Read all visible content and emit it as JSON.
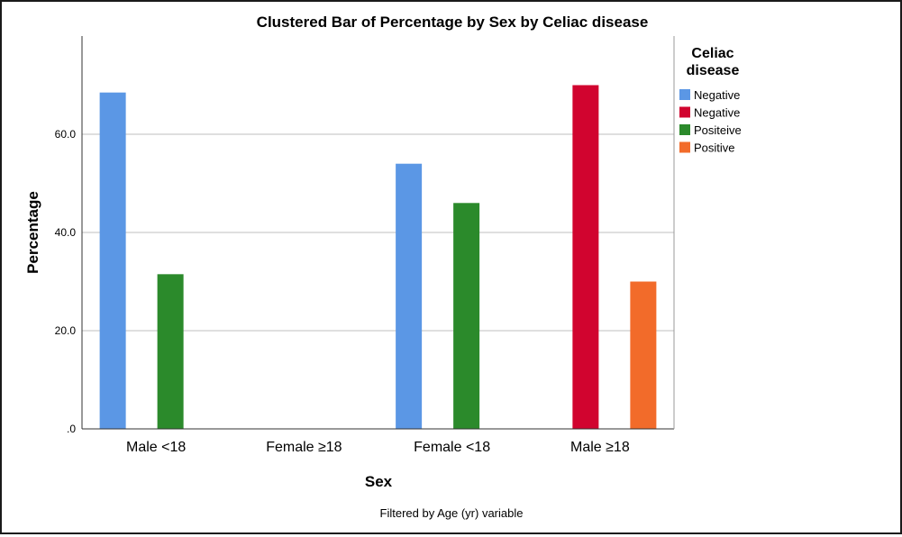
{
  "chart_data": {
    "type": "bar",
    "title": "Clustered Bar of Percentage by Sex by Celiac disease",
    "xlabel": "Sex",
    "ylabel": "Percentage",
    "categories": [
      "Male <18",
      "Female ≥18",
      "Female <18",
      "Male ≥18"
    ],
    "ylim": [
      0,
      80
    ],
    "yticks": [
      0,
      20,
      40,
      60
    ],
    "ytick_labels": [
      ".0",
      "20.0",
      "40.0",
      "60.0"
    ],
    "grid": true,
    "legend": {
      "title_lines": [
        "Celiac",
        "disease"
      ],
      "placement": "right"
    },
    "series": [
      {
        "name": "Negative",
        "color": "#5b97e5",
        "values": [
          68.5,
          null,
          54.0,
          null
        ]
      },
      {
        "name": "Negative",
        "color": "#d1042f",
        "values": [
          null,
          null,
          null,
          70.0
        ]
      },
      {
        "name": "Positeive",
        "color": "#2b8a2b",
        "values": [
          31.5,
          null,
          46.0,
          null
        ]
      },
      {
        "name": "Positive",
        "color": "#f26b2a",
        "values": [
          null,
          null,
          null,
          30.0
        ]
      }
    ],
    "footnote": "Filtered by Age (yr) variable"
  }
}
